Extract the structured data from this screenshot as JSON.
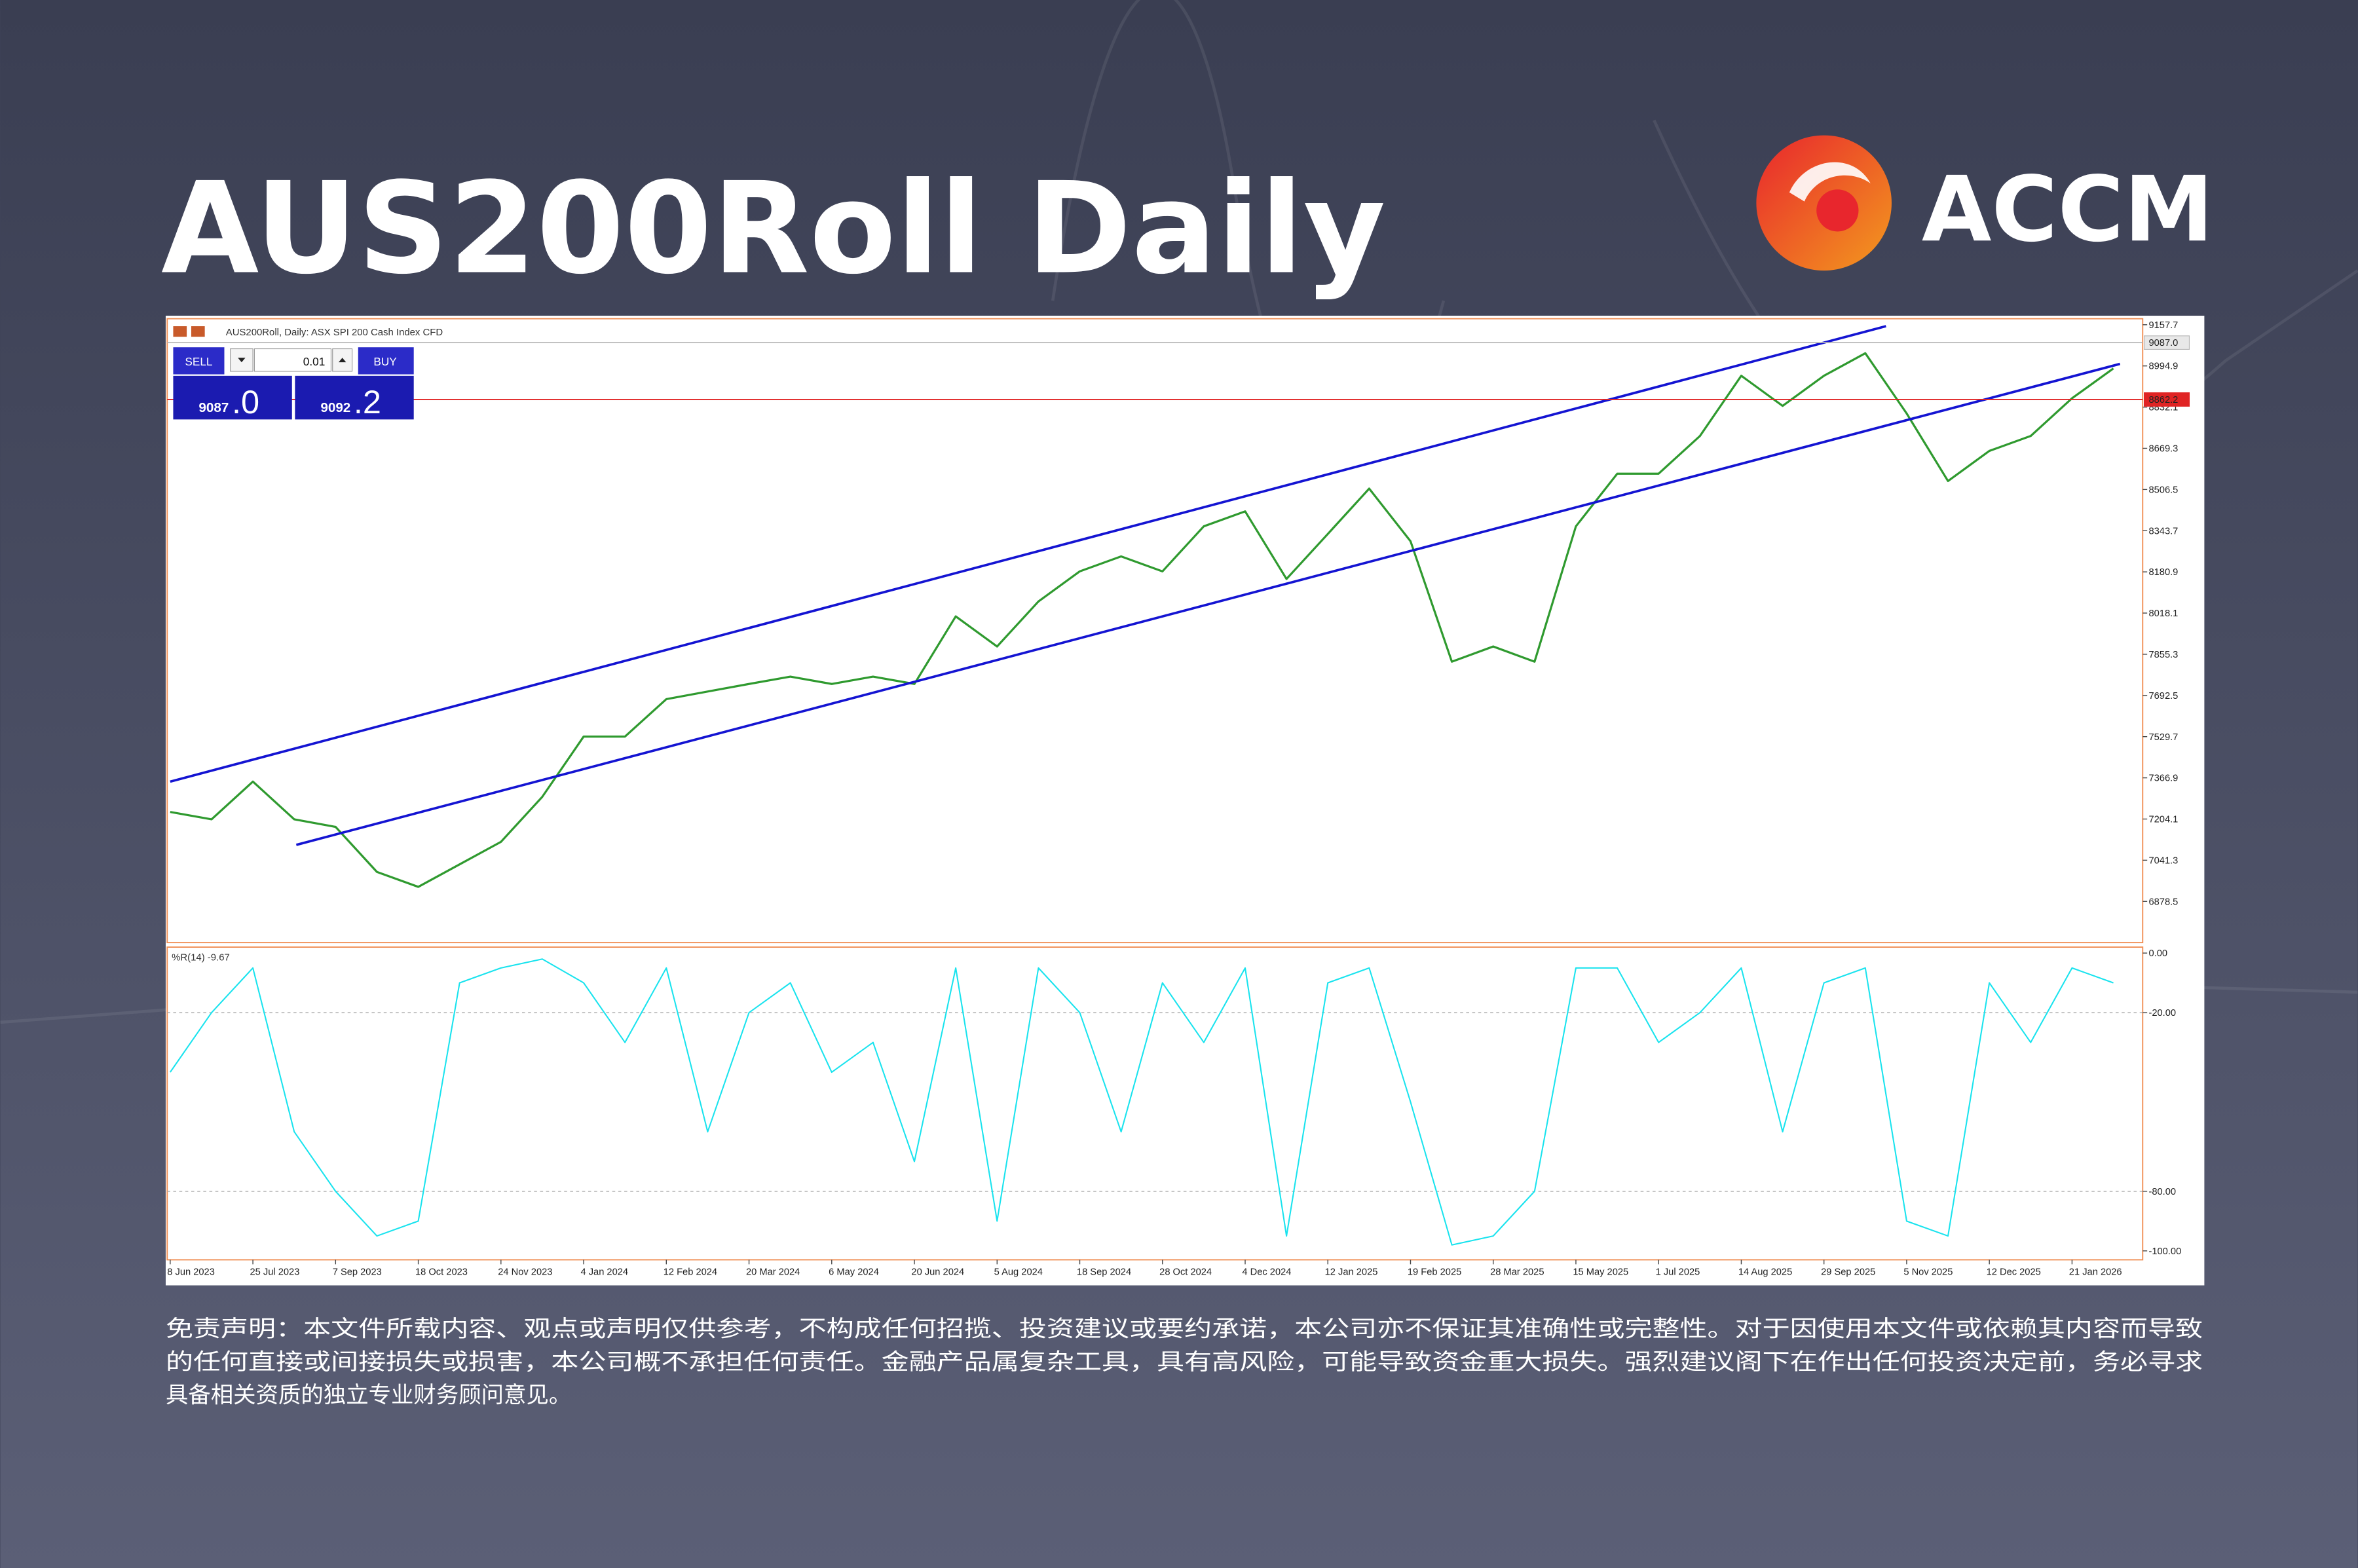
{
  "header": {
    "title": "AUS200Roll Daily",
    "brand": "ACCM"
  },
  "trade_panel": {
    "sell": "SELL",
    "volume": "0.01",
    "buy": "BUY",
    "bid": "9087",
    "bid_fraction": ".0",
    "ask": "9092",
    "ask_fraction": ".2"
  },
  "chart_data": [
    {
      "type": "line",
      "subtitle": "AUS200Roll, Daily:  ASX SPI 200 Cash Index CFD",
      "categories": [
        "8 Jun 2023",
        null,
        "25 Jul 2023",
        null,
        "7 Sep 2023",
        null,
        "18 Oct 2023",
        null,
        "24 Nov 2023",
        null,
        "4 Jan 2024",
        null,
        "12 Feb 2024",
        null,
        "20 Mar 2024",
        null,
        "6 May 2024",
        null,
        "20 Jun 2024",
        null,
        "5 Aug 2024",
        null,
        "18 Sep 2024",
        null,
        "28 Oct 2024",
        null,
        "4 Dec 2024",
        null,
        "12 Jan 2025",
        null,
        "19 Feb 2025",
        null,
        "28 Mar 2025",
        null,
        "15 May 2025",
        null,
        "1 Jul 2025",
        null,
        "14 Aug 2025",
        null,
        "29 Sep 2025",
        null,
        "5 Nov 2025",
        null,
        "12 Dec 2025",
        null,
        "21 Jan 2026",
        null
      ],
      "values": [
        7232,
        7203,
        7352,
        7203,
        7173,
        6995,
        6936,
        7025,
        7114,
        7292,
        7530,
        7530,
        7678,
        7708,
        7738,
        7767,
        7738,
        7767,
        7738,
        8005,
        7886,
        8064,
        8183,
        8242,
        8183,
        8361,
        8420,
        8153,
        8331,
        8510,
        8302,
        7826,
        7886,
        7826,
        8361,
        8569,
        8569,
        8718,
        8956,
        8837,
        8956,
        9045,
        8807,
        8540,
        8659,
        8718,
        8867,
        8985
      ],
      "color": "#2f9a2f",
      "ylim": [
        6715.7,
        9181.5
      ],
      "yticks": [
        9157.7,
        8994.9,
        8832.1,
        8669.3,
        8506.5,
        8343.7,
        8180.9,
        8018.1,
        7855.3,
        7692.5,
        7529.7,
        7366.9,
        7204.1,
        7041.3,
        6878.5
      ],
      "trendlines": [
        {
          "x": [
            0,
            41.5
          ],
          "values": [
            7352,
            9152
          ],
          "color": "#1414d2"
        },
        {
          "x": [
            3.05,
            47.16
          ],
          "values": [
            7102,
            9003
          ],
          "color": "#1414d2"
        }
      ],
      "price_lines": [
        {
          "value": 9087.0,
          "label": "9087.0",
          "color": "#b8b8b8"
        },
        {
          "value": 8862.2,
          "label": "8862.2",
          "color": "#e02424"
        }
      ]
    },
    {
      "type": "line",
      "label": "%R(14) -9.67",
      "values": [
        -40,
        -20,
        -5,
        -60,
        -80,
        -95,
        -90,
        -10,
        -5,
        -2,
        -10,
        -30,
        -5,
        -60,
        -20,
        -10,
        -40,
        -30,
        -70,
        -5,
        -90,
        -5,
        -20,
        -60,
        -10,
        -30,
        -5,
        -95,
        -10,
        -5,
        -50,
        -98,
        -95,
        -80,
        -5,
        -5,
        -30,
        -20,
        -5,
        -60,
        -10,
        -5,
        -90,
        -95,
        -10,
        -30,
        -5,
        -10
      ],
      "color": "#19e3ee",
      "ylim": [
        -103,
        2
      ],
      "yticks": [
        {
          "value": 0,
          "label": "0.00"
        },
        {
          "value": -20,
          "label": "-20.00"
        },
        {
          "value": -80,
          "label": "-80.00"
        },
        {
          "value": -100,
          "label": "-100.00"
        }
      ],
      "levels": [
        -20,
        -80
      ]
    }
  ],
  "disclaimer": [
    "免责声明：本文件所载内容、观点或声明仅供参考，不构成任何招揽、投资建议或要约承诺，本公司亦不保证其准确性或完整性。对于因使用本文件或依赖其内容而导致",
    "的任何直接或间接损失或损害，本公司概不承担任何责任。金融产品属复杂工具，具有高风险，可能导致资金重大损失。强烈建议阁下在作出任何投资决定前，务必寻求",
    "具备相关资质的独立专业财务顾问意见。"
  ]
}
